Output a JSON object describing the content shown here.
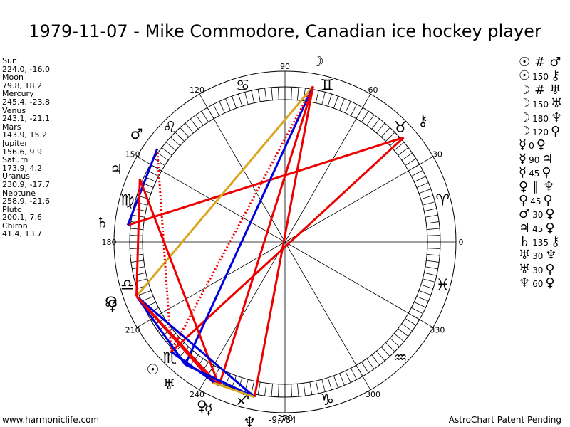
{
  "title": "1979-11-07 - Mike Commodore, Canadian ice hockey player",
  "planets": [
    {
      "name": "Sun",
      "coords": "224.0, -16.0",
      "lon": 224.0
    },
    {
      "name": "Moon",
      "coords": "79.8, 18.2",
      "lon": 79.8
    },
    {
      "name": "Mercury",
      "coords": "245.4, -23.8",
      "lon": 245.4
    },
    {
      "name": "Venus",
      "coords": "243.1, -21.1",
      "lon": 243.1
    },
    {
      "name": "Mars",
      "coords": "143.9, 15.2",
      "lon": 143.9
    },
    {
      "name": "Jupiter",
      "coords": "156.6, 9.9",
      "lon": 156.6
    },
    {
      "name": "Saturn",
      "coords": "173.9, 4.2",
      "lon": 173.9
    },
    {
      "name": "Uranus",
      "coords": "230.9, -17.7",
      "lon": 230.9
    },
    {
      "name": "Neptune",
      "coords": "258.9, -21.6",
      "lon": 258.9
    },
    {
      "name": "Pluto",
      "coords": "200.1, 7.6",
      "lon": 200.1
    },
    {
      "name": "Chiron",
      "coords": "41.4, 13.7",
      "lon": 41.4
    }
  ],
  "aspects": [
    {
      "p1": "☉",
      "n": "",
      "sym": "#",
      "p2": "♂"
    },
    {
      "p1": "☉",
      "n": "150",
      "sym": "",
      "p2": "⚷"
    },
    {
      "p1": "☽",
      "n": "",
      "sym": "#",
      "p2": "♅"
    },
    {
      "p1": "☽",
      "n": "150",
      "sym": "",
      "p2": "♅"
    },
    {
      "p1": "☽",
      "n": "180",
      "sym": "",
      "p2": "♆"
    },
    {
      "p1": "☽",
      "n": "120",
      "sym": "",
      "p2": "♀"
    },
    {
      "p1": "☿",
      "n": "0",
      "sym": "",
      "p2": "♀"
    },
    {
      "p1": "☿",
      "n": "90",
      "sym": "",
      "p2": "♃"
    },
    {
      "p1": "☿",
      "n": "45",
      "sym": "",
      "p2": "♀"
    },
    {
      "p1": "♀",
      "n": "",
      "sym": "∥",
      "p2": "♆"
    },
    {
      "p1": "♀",
      "n": "45",
      "sym": "",
      "p2": "♀"
    },
    {
      "p1": "♂",
      "n": "30",
      "sym": "",
      "p2": "♀"
    },
    {
      "p1": "♃",
      "n": "45",
      "sym": "",
      "p2": "♀"
    },
    {
      "p1": "♄",
      "n": "135",
      "sym": "",
      "p2": "⚷"
    },
    {
      "p1": "♅",
      "n": "30",
      "sym": "",
      "p2": "♆"
    },
    {
      "p1": "♅",
      "n": "30",
      "sym": "",
      "p2": "♀"
    },
    {
      "p1": "♆",
      "n": "60",
      "sym": "",
      "p2": "♀"
    }
  ],
  "degree_labels": [
    {
      "deg": 0,
      "text": "0"
    },
    {
      "deg": 30,
      "text": "30"
    },
    {
      "deg": 60,
      "text": "60"
    },
    {
      "deg": 90,
      "text": "90"
    },
    {
      "deg": 120,
      "text": "120"
    },
    {
      "deg": 150,
      "text": "150"
    },
    {
      "deg": 180,
      "text": "180"
    },
    {
      "deg": 210,
      "text": "210"
    },
    {
      "deg": 240,
      "text": "240"
    },
    {
      "deg": 270,
      "text": "270"
    },
    {
      "deg": 300,
      "text": "300"
    },
    {
      "deg": 330,
      "text": "330"
    }
  ],
  "zodiac_signs": [
    {
      "deg": 15,
      "glyph": "♈"
    },
    {
      "deg": 45,
      "glyph": "♉"
    },
    {
      "deg": 75,
      "glyph": "♊"
    },
    {
      "deg": 105,
      "glyph": "♋"
    },
    {
      "deg": 135,
      "glyph": "♌"
    },
    {
      "deg": 165,
      "glyph": "♍"
    },
    {
      "deg": 195,
      "glyph": "♎"
    },
    {
      "deg": 225,
      "glyph": "♏"
    },
    {
      "deg": 255,
      "glyph": "♐"
    },
    {
      "deg": 285,
      "glyph": "♑"
    },
    {
      "deg": 315,
      "glyph": "♒"
    },
    {
      "deg": 345,
      "glyph": "♓"
    }
  ],
  "chart_glyphs": [
    {
      "name": "moon",
      "glyph": "☽",
      "lon": 79.8
    },
    {
      "name": "chiron",
      "glyph": "⚷",
      "lon": 41.4
    },
    {
      "name": "mars",
      "glyph": "♂",
      "lon": 143.9
    },
    {
      "name": "jupiter",
      "glyph": "♃",
      "lon": 156.6
    },
    {
      "name": "saturn",
      "glyph": "♄",
      "lon": 173.9
    },
    {
      "name": "node",
      "glyph": "☊",
      "lon": 199.0
    },
    {
      "name": "pluto",
      "glyph": "♀",
      "lon": 200.1
    },
    {
      "name": "sun",
      "glyph": "☉",
      "lon": 224.0
    },
    {
      "name": "uranus",
      "glyph": "♅",
      "lon": 230.9
    },
    {
      "name": "venus",
      "glyph": "♀",
      "lon": 243.1
    },
    {
      "name": "mercury",
      "glyph": "☿",
      "lon": 245.4
    },
    {
      "name": "neptune",
      "glyph": "♆",
      "lon": 258.9
    }
  ],
  "aspect_lines": [
    {
      "a": 79.8,
      "b": 258.9,
      "color": "#ee0000",
      "style": "solid"
    },
    {
      "a": 41.4,
      "b": 224.0,
      "color": "#ee0000",
      "style": "solid"
    },
    {
      "a": 41.4,
      "b": 173.9,
      "color": "#ee0000",
      "style": "solid"
    },
    {
      "a": 79.8,
      "b": 200.1,
      "color": "#daa520",
      "style": "solid"
    },
    {
      "a": 79.8,
      "b": 230.9,
      "color": "#0000dd",
      "style": "solid"
    },
    {
      "a": 79.8,
      "b": 224.0,
      "color": "#ee0000",
      "style": "dotted"
    },
    {
      "a": 79.8,
      "b": 245.4,
      "color": "#ee0000",
      "style": "solid"
    },
    {
      "a": 143.9,
      "b": 224.0,
      "color": "#ee0000",
      "style": "dotted"
    },
    {
      "a": 143.9,
      "b": 173.9,
      "color": "#0000dd",
      "style": "solid"
    },
    {
      "a": 156.6,
      "b": 200.1,
      "color": "#ee0000",
      "style": "solid"
    },
    {
      "a": 156.6,
      "b": 245.4,
      "color": "#ee0000",
      "style": "solid"
    },
    {
      "a": 200.1,
      "b": 230.9,
      "color": "#0000dd",
      "style": "solid"
    },
    {
      "a": 200.1,
      "b": 258.9,
      "color": "#0000dd",
      "style": "solid"
    },
    {
      "a": 200.1,
      "b": 245.4,
      "color": "#ee0000",
      "style": "solid"
    },
    {
      "a": 200.1,
      "b": 243.1,
      "color": "#ee0000",
      "style": "solid"
    },
    {
      "a": 224.0,
      "b": 245.4,
      "color": "#0000dd",
      "style": "solid"
    },
    {
      "a": 230.9,
      "b": 258.9,
      "color": "#0000dd",
      "style": "solid"
    },
    {
      "a": 243.1,
      "b": 258.9,
      "color": "#daa520",
      "style": "solid"
    }
  ],
  "footer": {
    "left": "www.harmoniclife.com",
    "mid": "-9,784",
    "right": "AstroChart Patent Pending"
  }
}
